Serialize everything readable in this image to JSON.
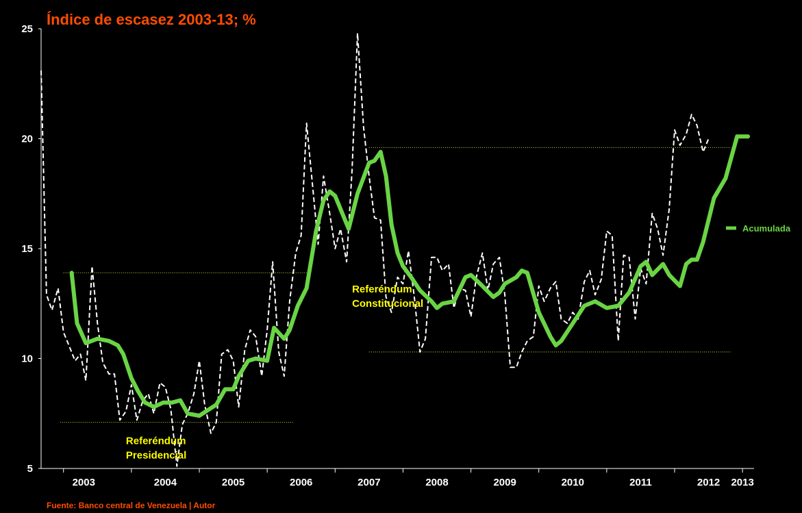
{
  "chart_data": {
    "type": "line",
    "title": "Índice de escasez  2003-13; %",
    "source": "Fuente: Banco central de Venezuela | Autor",
    "xlabel": "",
    "ylabel": "",
    "ylim": [
      5,
      25
    ],
    "xlim": [
      2002.67,
      2013.17
    ],
    "y_ticks": [
      "5",
      "10",
      "15",
      "20",
      "25"
    ],
    "x_ticks": [
      "2003",
      "2004",
      "2005",
      "2006",
      "2007",
      "2008",
      "2009",
      "2010",
      "2011",
      "2012",
      "2013"
    ],
    "grid": false,
    "legend_position": "right",
    "colors": {
      "background": "#000000",
      "title": "#ff4d00",
      "accumulated": "#6ad445",
      "monthly": "#ffffff",
      "reference_lines": "#d6e23a",
      "annotation": "#ffff00",
      "legend_text": "#6ad445",
      "source": "#ff4d00",
      "axis": "#ffffff"
    },
    "series": [
      {
        "key": "monthly",
        "style": "dashed",
        "points": [
          [
            2002.67,
            23.1
          ],
          [
            2002.75,
            12.9
          ],
          [
            2002.83,
            12.2
          ],
          [
            2002.92,
            13.2
          ],
          [
            2003.0,
            11.2
          ],
          [
            2003.08,
            10.6
          ],
          [
            2003.17,
            9.9
          ],
          [
            2003.25,
            10.2
          ],
          [
            2003.33,
            9.0
          ],
          [
            2003.42,
            14.2
          ],
          [
            2003.5,
            11.6
          ],
          [
            2003.58,
            9.8
          ],
          [
            2003.67,
            9.3
          ],
          [
            2003.75,
            9.3
          ],
          [
            2003.83,
            7.2
          ],
          [
            2003.92,
            7.6
          ],
          [
            2004.0,
            8.8
          ],
          [
            2004.08,
            7.2
          ],
          [
            2004.17,
            8.1
          ],
          [
            2004.25,
            8.4
          ],
          [
            2004.33,
            7.5
          ],
          [
            2004.42,
            8.9
          ],
          [
            2004.5,
            8.7
          ],
          [
            2004.58,
            7.7
          ],
          [
            2004.67,
            5.1
          ],
          [
            2004.75,
            7.0
          ],
          [
            2004.83,
            7.5
          ],
          [
            2004.92,
            8.4
          ],
          [
            2005.0,
            9.9
          ],
          [
            2005.08,
            7.9
          ],
          [
            2005.17,
            6.6
          ],
          [
            2005.25,
            7.1
          ],
          [
            2005.33,
            10.2
          ],
          [
            2005.42,
            10.4
          ],
          [
            2005.5,
            9.9
          ],
          [
            2005.58,
            7.8
          ],
          [
            2005.67,
            10.4
          ],
          [
            2005.75,
            11.3
          ],
          [
            2005.83,
            11.0
          ],
          [
            2005.92,
            9.2
          ],
          [
            2006.0,
            11.3
          ],
          [
            2006.08,
            14.4
          ],
          [
            2006.17,
            10.3
          ],
          [
            2006.25,
            9.2
          ],
          [
            2006.33,
            12.6
          ],
          [
            2006.42,
            14.8
          ],
          [
            2006.5,
            15.6
          ],
          [
            2006.58,
            20.7
          ],
          [
            2006.67,
            17.8
          ],
          [
            2006.75,
            15.2
          ],
          [
            2006.83,
            18.3
          ],
          [
            2006.92,
            16.6
          ],
          [
            2007.0,
            15.0
          ],
          [
            2007.08,
            15.9
          ],
          [
            2007.17,
            14.4
          ],
          [
            2007.25,
            18.6
          ],
          [
            2007.33,
            24.8
          ],
          [
            2007.42,
            20.5
          ],
          [
            2007.5,
            18.3
          ],
          [
            2007.58,
            16.4
          ],
          [
            2007.67,
            16.3
          ],
          [
            2007.75,
            12.8
          ],
          [
            2007.83,
            12.1
          ],
          [
            2007.92,
            13.7
          ],
          [
            2008.0,
            13.4
          ],
          [
            2008.08,
            14.9
          ],
          [
            2008.17,
            12.7
          ],
          [
            2008.25,
            10.3
          ],
          [
            2008.33,
            10.9
          ],
          [
            2008.42,
            14.6
          ],
          [
            2008.5,
            14.6
          ],
          [
            2008.58,
            14.0
          ],
          [
            2008.67,
            14.3
          ],
          [
            2008.75,
            12.3
          ],
          [
            2008.83,
            13.2
          ],
          [
            2008.92,
            13.1
          ],
          [
            2009.0,
            11.9
          ],
          [
            2009.08,
            13.7
          ],
          [
            2009.17,
            14.8
          ],
          [
            2009.25,
            13.1
          ],
          [
            2009.33,
            14.3
          ],
          [
            2009.42,
            14.6
          ],
          [
            2009.5,
            12.9
          ],
          [
            2009.58,
            9.6
          ],
          [
            2009.67,
            9.6
          ],
          [
            2009.75,
            10.3
          ],
          [
            2009.83,
            10.8
          ],
          [
            2009.92,
            11.0
          ],
          [
            2010.0,
            13.3
          ],
          [
            2010.08,
            12.6
          ],
          [
            2010.17,
            13.2
          ],
          [
            2010.25,
            13.5
          ],
          [
            2010.33,
            11.8
          ],
          [
            2010.42,
            11.6
          ],
          [
            2010.5,
            12.1
          ],
          [
            2010.58,
            11.8
          ],
          [
            2010.67,
            13.5
          ],
          [
            2010.75,
            14.0
          ],
          [
            2010.83,
            12.9
          ],
          [
            2010.92,
            13.6
          ],
          [
            2011.0,
            15.8
          ],
          [
            2011.08,
            15.6
          ],
          [
            2011.17,
            10.8
          ],
          [
            2011.25,
            14.7
          ],
          [
            2011.33,
            14.6
          ],
          [
            2011.42,
            11.8
          ],
          [
            2011.5,
            14.1
          ],
          [
            2011.58,
            13.4
          ],
          [
            2011.67,
            16.6
          ],
          [
            2011.75,
            15.9
          ],
          [
            2011.83,
            14.7
          ],
          [
            2011.92,
            16.8
          ],
          [
            2012.0,
            20.4
          ],
          [
            2012.08,
            19.7
          ],
          [
            2012.17,
            20.2
          ],
          [
            2012.25,
            21.1
          ],
          [
            2012.33,
            20.6
          ],
          [
            2012.42,
            19.4
          ],
          [
            2012.5,
            20.0
          ]
        ]
      },
      {
        "name": "Acumulada",
        "key": "accumulated",
        "style": "solid",
        "points": [
          [
            2003.12,
            13.9
          ],
          [
            2003.2,
            11.6
          ],
          [
            2003.33,
            10.7
          ],
          [
            2003.5,
            10.9
          ],
          [
            2003.67,
            10.8
          ],
          [
            2003.8,
            10.6
          ],
          [
            2003.88,
            10.2
          ],
          [
            2004.0,
            9.1
          ],
          [
            2004.1,
            8.5
          ],
          [
            2004.2,
            8.0
          ],
          [
            2004.33,
            7.8
          ],
          [
            2004.47,
            8.0
          ],
          [
            2004.6,
            8.0
          ],
          [
            2004.72,
            8.1
          ],
          [
            2004.83,
            7.5
          ],
          [
            2005.0,
            7.4
          ],
          [
            2005.1,
            7.6
          ],
          [
            2005.25,
            7.9
          ],
          [
            2005.38,
            8.6
          ],
          [
            2005.5,
            8.6
          ],
          [
            2005.58,
            9.2
          ],
          [
            2005.72,
            9.9
          ],
          [
            2005.83,
            10.0
          ],
          [
            2006.0,
            9.9
          ],
          [
            2006.1,
            11.4
          ],
          [
            2006.25,
            10.9
          ],
          [
            2006.33,
            11.3
          ],
          [
            2006.45,
            12.4
          ],
          [
            2006.58,
            13.2
          ],
          [
            2006.72,
            15.8
          ],
          [
            2006.83,
            17.2
          ],
          [
            2006.92,
            17.6
          ],
          [
            2007.0,
            17.4
          ],
          [
            2007.12,
            16.5
          ],
          [
            2007.2,
            15.9
          ],
          [
            2007.33,
            17.5
          ],
          [
            2007.5,
            18.9
          ],
          [
            2007.58,
            19.0
          ],
          [
            2007.67,
            19.4
          ],
          [
            2007.75,
            18.3
          ],
          [
            2007.83,
            16.1
          ],
          [
            2007.92,
            14.8
          ],
          [
            2008.0,
            14.2
          ],
          [
            2008.12,
            13.7
          ],
          [
            2008.25,
            13.1
          ],
          [
            2008.42,
            12.6
          ],
          [
            2008.5,
            12.3
          ],
          [
            2008.58,
            12.5
          ],
          [
            2008.75,
            12.6
          ],
          [
            2008.92,
            13.7
          ],
          [
            2009.0,
            13.8
          ],
          [
            2009.17,
            13.3
          ],
          [
            2009.33,
            12.8
          ],
          [
            2009.42,
            13.0
          ],
          [
            2009.5,
            13.4
          ],
          [
            2009.67,
            13.7
          ],
          [
            2009.75,
            14.0
          ],
          [
            2009.83,
            13.9
          ],
          [
            2010.0,
            12.1
          ],
          [
            2010.17,
            11.0
          ],
          [
            2010.25,
            10.6
          ],
          [
            2010.33,
            10.8
          ],
          [
            2010.5,
            11.6
          ],
          [
            2010.67,
            12.4
          ],
          [
            2010.83,
            12.6
          ],
          [
            2011.0,
            12.3
          ],
          [
            2011.17,
            12.4
          ],
          [
            2011.33,
            13.0
          ],
          [
            2011.5,
            14.2
          ],
          [
            2011.58,
            14.4
          ],
          [
            2011.67,
            13.8
          ],
          [
            2011.83,
            14.3
          ],
          [
            2011.92,
            13.8
          ],
          [
            2012.08,
            13.3
          ],
          [
            2012.17,
            14.3
          ],
          [
            2012.25,
            14.5
          ],
          [
            2012.33,
            14.5
          ],
          [
            2012.42,
            15.3
          ],
          [
            2012.58,
            17.3
          ],
          [
            2012.75,
            18.2
          ],
          [
            2012.92,
            20.1
          ],
          [
            2013.08,
            20.1
          ]
        ]
      }
    ],
    "reference_lines": [
      {
        "y": 13.9,
        "x_from": 2003.0,
        "x_to": 2006.58
      },
      {
        "y": 7.1,
        "x_from": 2002.95,
        "x_to": 2006.4
      },
      {
        "y": 19.6,
        "x_from": 2007.5,
        "x_to": 2012.83
      },
      {
        "y": 10.3,
        "x_from": 2007.5,
        "x_to": 2012.83
      }
    ],
    "annotations": [
      {
        "lines": [
          "Referéndum",
          "Presidencial"
        ],
        "x": 2003.92,
        "y": 6.1
      },
      {
        "lines": [
          "Referéndum",
          "Constitucional"
        ],
        "x": 2007.25,
        "y": 13.0
      }
    ]
  }
}
